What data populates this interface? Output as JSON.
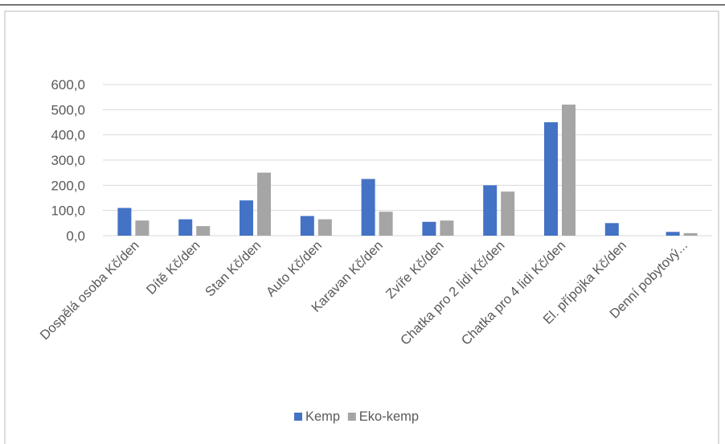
{
  "chart_data": {
    "type": "bar",
    "title": "",
    "xlabel": "",
    "ylabel": "",
    "ylim": [
      0,
      600
    ],
    "yticks": [
      0,
      100,
      200,
      300,
      400,
      500,
      600
    ],
    "ytick_labels": [
      "0,0",
      "100,0",
      "200,0",
      "300,0",
      "400,0",
      "500,0",
      "600,0"
    ],
    "grid": true,
    "legend_position": "bottom",
    "categories": [
      "Dospělá osoba Kč/den",
      "Dítě Kč/den",
      "Stan Kč/den",
      "Auto Kč/den",
      "Karavan Kč/den",
      "Zvíře Kč/den",
      "Chatka pro 2 lidi Kč/den",
      "Chatka pro 4 lidi Kč/den",
      "El. přípojka Kč/den",
      "Denní pobytový..."
    ],
    "series": [
      {
        "name": "Kemp",
        "color": "#4472c4",
        "values": [
          110,
          65,
          140,
          78,
          225,
          55,
          200,
          450,
          50,
          15
        ]
      },
      {
        "name": "Eko-kemp",
        "color": "#a5a5a5",
        "values": [
          60,
          38,
          250,
          65,
          95,
          60,
          175,
          520,
          0,
          10
        ]
      }
    ]
  }
}
